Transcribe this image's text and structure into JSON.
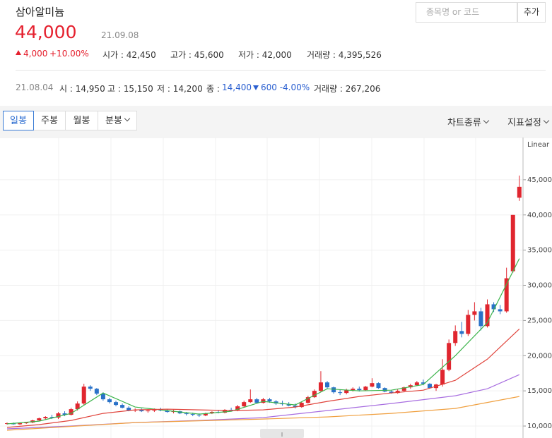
{
  "header": {
    "title": "삼아알미늄",
    "price": "44,000",
    "date": "21.09.08",
    "change": "4,000",
    "change_pct": "+10.00%",
    "stats": [
      "시가 : 42,450",
      "고가 : 45,600",
      "저가 : 42,000",
      "거래량 : 4,395,526"
    ],
    "search_placeholder": "종목명 or 코드",
    "add_button": "추가"
  },
  "info": {
    "date": "21.08.04",
    "open": "시 : 14,950",
    "high": "고 : 15,150",
    "low": "저 : 14,200",
    "close_label": "종 :",
    "close": "14,400",
    "change": "600 -4.00%",
    "volume": "거래량 : 267,206"
  },
  "tabs": [
    "일봉",
    "주봉",
    "월봉",
    "분봉"
  ],
  "menus": [
    "차트종류",
    "지표설정"
  ],
  "chart_data": {
    "type": "candlestick",
    "scale_label": "Linear",
    "ylim": [
      8300,
      50500
    ],
    "yticks": [
      {
        "value": 10000,
        "label": "10,000"
      },
      {
        "value": 15000,
        "label": "15,000"
      },
      {
        "value": 20000,
        "label": "20,000"
      },
      {
        "value": 25000,
        "label": "25,000"
      },
      {
        "value": 30000,
        "label": "30,000"
      },
      {
        "value": 35000,
        "label": "35,000"
      },
      {
        "value": 40000,
        "label": "40,000"
      },
      {
        "value": 45000,
        "label": "45,000"
      }
    ],
    "up_color": "#e0262f",
    "down_color": "#2a72c8",
    "open": [
      10300,
      10400,
      10250,
      10400,
      10500,
      10800,
      11100,
      11300,
      11200,
      11800,
      11600,
      12400,
      13200,
      15600,
      15300,
      14600,
      13800,
      13400,
      13000,
      12600,
      12200,
      12300,
      12100,
      12200,
      12400,
      12200,
      12000,
      12100,
      11800,
      11700,
      11600,
      11500,
      11800,
      12000,
      11900,
      12300,
      12200,
      12800,
      13400,
      13800,
      13300,
      13800,
      13500,
      13200,
      13100,
      12900,
      12700,
      13300,
      14100,
      15000,
      16200,
      15500,
      14800,
      14700,
      15100,
      15300,
      15100,
      15600,
      16100,
      15400,
      14900,
      14700,
      15000,
      15500,
      15800,
      16200,
      16000,
      15400,
      15900,
      18000,
      21800,
      23500,
      23100,
      25800,
      26300,
      24200,
      27300,
      26600,
      26300,
      32000,
      42450
    ],
    "high": [
      10500,
      10500,
      10450,
      10600,
      10900,
      11200,
      11400,
      11600,
      12000,
      12100,
      12600,
      13500,
      16000,
      15800,
      15400,
      14800,
      14000,
      13600,
      13200,
      12800,
      12500,
      12500,
      12400,
      12500,
      12600,
      12400,
      12300,
      12200,
      12000,
      11900,
      11800,
      11900,
      12100,
      12300,
      12400,
      12600,
      13000,
      13600,
      15200,
      14000,
      14000,
      14000,
      13700,
      13600,
      13400,
      13200,
      13500,
      14300,
      15200,
      17800,
      16400,
      15600,
      15200,
      15300,
      15500,
      15600,
      15700,
      16800,
      16200,
      15500,
      15100,
      15200,
      15600,
      16000,
      16400,
      16600,
      16100,
      16000,
      19500,
      22300,
      24300,
      24800,
      26500,
      27600,
      26800,
      28000,
      27600,
      27200,
      32500,
      40000,
      45600
    ],
    "low": [
      10200,
      10200,
      10150,
      10300,
      10400,
      10700,
      10900,
      11000,
      11000,
      11400,
      11500,
      12200,
      13000,
      15000,
      14400,
      13600,
      13200,
      12800,
      12500,
      12100,
      12000,
      12000,
      11900,
      12000,
      12100,
      11900,
      11800,
      11700,
      11500,
      11400,
      11300,
      11400,
      11700,
      11800,
      11800,
      12100,
      12100,
      12600,
      13300,
      13200,
      13200,
      13300,
      13000,
      12900,
      12800,
      12500,
      12600,
      13200,
      14000,
      14800,
      15300,
      14600,
      14400,
      14500,
      14900,
      14900,
      15000,
      15500,
      15300,
      14800,
      14600,
      14600,
      14900,
      15300,
      15700,
      15800,
      15300,
      15000,
      15600,
      17800,
      21400,
      22600,
      22800,
      25000,
      23600,
      24000,
      26200,
      25900,
      26100,
      31800,
      42000
    ],
    "close": [
      10400,
      10250,
      10400,
      10500,
      10800,
      11100,
      11300,
      11200,
      11800,
      11600,
      12400,
      13200,
      15600,
      15300,
      14600,
      13800,
      13400,
      13000,
      12600,
      12200,
      12300,
      12100,
      12200,
      12400,
      12200,
      12000,
      12100,
      11800,
      11700,
      11600,
      11500,
      11800,
      12000,
      11900,
      12300,
      12200,
      12800,
      13400,
      13800,
      13300,
      13800,
      13500,
      13200,
      13100,
      12900,
      12700,
      13300,
      14100,
      15000,
      16200,
      15500,
      14800,
      14700,
      15100,
      15300,
      15100,
      15600,
      16100,
      15400,
      14900,
      14700,
      15000,
      15500,
      15800,
      16200,
      16000,
      15400,
      15900,
      18000,
      21800,
      23500,
      23100,
      25800,
      26300,
      24200,
      27300,
      26600,
      26300,
      31000,
      40000,
      44000
    ],
    "series": [
      {
        "color": "#3cb44b",
        "x": [
          0,
          5,
          10,
          15,
          20,
          25,
          30,
          35,
          40,
          45,
          50,
          55,
          60,
          65,
          70,
          75,
          80
        ],
        "values": [
          10300,
          10700,
          11800,
          14700,
          12700,
          12200,
          11700,
          12100,
          13500,
          13000,
          15300,
          15000,
          15100,
          15900,
          20000,
          24700,
          33800
        ]
      },
      {
        "color": "#e0443c",
        "x": [
          0,
          5,
          10,
          15,
          20,
          25,
          30,
          35,
          40,
          45,
          50,
          55,
          60,
          65,
          70,
          75,
          80
        ],
        "values": [
          9800,
          10200,
          10800,
          11800,
          12300,
          12400,
          12300,
          12200,
          12300,
          12700,
          13500,
          14200,
          14700,
          15100,
          16500,
          19500,
          23800
        ]
      },
      {
        "color": "#a86ee0",
        "x": [
          0,
          10,
          20,
          30,
          40,
          50,
          60,
          70,
          75,
          80
        ],
        "values": [
          9600,
          10000,
          10500,
          10800,
          11200,
          12200,
          13200,
          14300,
          15300,
          17300
        ]
      },
      {
        "color": "#f0a040",
        "x": [
          0,
          20,
          40,
          50,
          60,
          70,
          80
        ],
        "values": [
          9400,
          10500,
          11000,
          11300,
          11800,
          12500,
          14200
        ]
      }
    ]
  }
}
